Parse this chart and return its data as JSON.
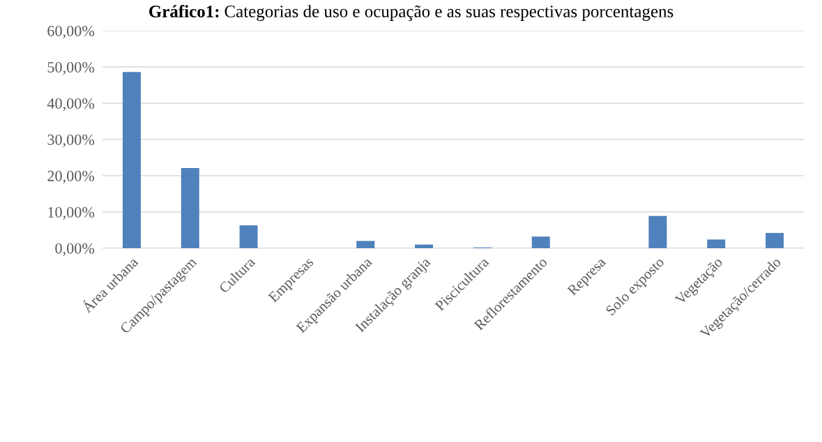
{
  "chart_data": {
    "type": "bar",
    "title": "Gráfico1: Categorias de uso e ocupação e as suas respectivas porcentagens",
    "categories": [
      "Área urbana",
      "Campo/pastagem",
      "Cultura",
      "Empresas",
      "Expansão urbana",
      "Instalação granja",
      "Piscicultura",
      "Reflorestamento",
      "Represa",
      "Solo exposto",
      "Vegetação",
      "Vegetação/cerrado"
    ],
    "values": [
      48.6,
      22.1,
      6.3,
      0,
      2.0,
      1.0,
      0.2,
      3.2,
      0,
      8.9,
      2.4,
      4.2
    ],
    "color": "#4f81bd",
    "ylim": [
      0,
      60
    ],
    "yticks": [
      {
        "value": 0,
        "label": "0,00%"
      },
      {
        "value": 10,
        "label": "10,00%"
      },
      {
        "value": 20,
        "label": "20,00%"
      },
      {
        "value": 30,
        "label": "30,00%"
      },
      {
        "value": 40,
        "label": "40,00%"
      },
      {
        "value": 50,
        "label": "50,00%"
      },
      {
        "value": 60,
        "label": "60,00%"
      }
    ],
    "grid": "y"
  }
}
